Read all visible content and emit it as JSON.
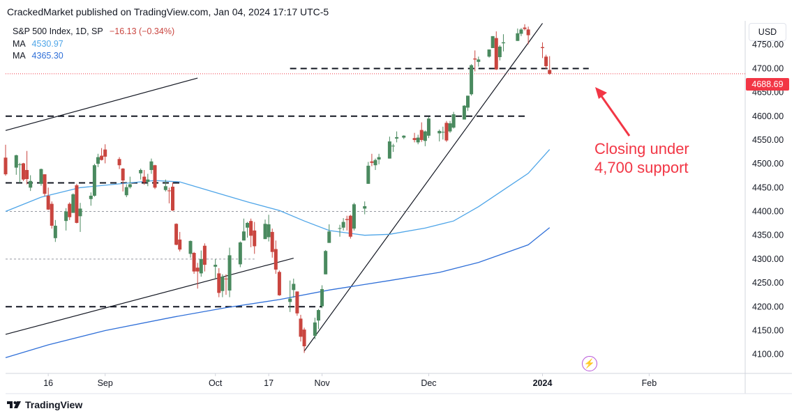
{
  "header": {
    "publisher_line": "CrackedMarket published on TradingView.com, Jan 04, 2024 17:17 UTC-5"
  },
  "legend": {
    "symbol": "S&P 500 Index, 1D, SP",
    "change": "−16.13 (−0.34%)",
    "ma1_label": "MA",
    "ma1_value": "4530.97",
    "ma2_label": "MA",
    "ma2_value": "4365.30"
  },
  "currency": "USD",
  "last_price": "4688.69",
  "annotation": {
    "line1": "Closing under",
    "line2": "4,700 support"
  },
  "footer": {
    "brand": "TradingView"
  },
  "colors": {
    "up": "#4a8a5f",
    "down": "#c9453f",
    "ma_fast": "#4ea5e8",
    "ma_slow": "#2f6fd8",
    "annotation": "#f23645"
  },
  "chart_data": {
    "type": "candlestick",
    "y_range": [
      4060,
      4800
    ],
    "y_ticks": [
      4100,
      4150,
      4200,
      4250,
      4300,
      4350,
      4400,
      4450,
      4500,
      4550,
      4600,
      4650,
      4700,
      4750
    ],
    "x_ticks": [
      "16",
      "Sep",
      "Oct",
      "17",
      "Nov",
      "Dec",
      "2024",
      "Feb"
    ],
    "x_tick_dates": [
      "2023-08-16",
      "2023-09-01",
      "2023-10-02",
      "2023-10-17",
      "2023-11-01",
      "2023-12-01",
      "2024-01-02",
      "2024-02-01"
    ],
    "x_range": [
      "2023-08-04",
      "2024-02-28"
    ],
    "candles": [
      {
        "d": "2023-08-04",
        "o": 4513,
        "h": 4540,
        "l": 4475,
        "c": 4478
      },
      {
        "d": "2023-08-07",
        "o": 4492,
        "h": 4519,
        "l": 4477,
        "c": 4518
      },
      {
        "d": "2023-08-08",
        "o": 4498,
        "h": 4502,
        "l": 4460,
        "c": 4499
      },
      {
        "d": "2023-08-09",
        "o": 4501,
        "h": 4502,
        "l": 4464,
        "c": 4467
      },
      {
        "d": "2023-08-10",
        "o": 4487,
        "h": 4527,
        "l": 4457,
        "c": 4468
      },
      {
        "d": "2023-08-11",
        "o": 4450,
        "h": 4476,
        "l": 4443,
        "c": 4464
      },
      {
        "d": "2023-08-14",
        "o": 4458,
        "h": 4490,
        "l": 4454,
        "c": 4489
      },
      {
        "d": "2023-08-15",
        "o": 4478,
        "h": 4478,
        "l": 4432,
        "c": 4437
      },
      {
        "d": "2023-08-16",
        "o": 4433,
        "h": 4450,
        "l": 4403,
        "c": 4404
      },
      {
        "d": "2023-08-17",
        "o": 4416,
        "h": 4421,
        "l": 4364,
        "c": 4370
      },
      {
        "d": "2023-08-18",
        "o": 4344,
        "h": 4382,
        "l": 4336,
        "c": 4370
      },
      {
        "d": "2023-08-21",
        "o": 4380,
        "h": 4407,
        "l": 4360,
        "c": 4400
      },
      {
        "d": "2023-08-22",
        "o": 4416,
        "h": 4419,
        "l": 4382,
        "c": 4388
      },
      {
        "d": "2023-08-23",
        "o": 4397,
        "h": 4438,
        "l": 4397,
        "c": 4436
      },
      {
        "d": "2023-08-24",
        "o": 4455,
        "h": 4458,
        "l": 4375,
        "c": 4376
      },
      {
        "d": "2023-08-25",
        "o": 4390,
        "h": 4418,
        "l": 4357,
        "c": 4406
      },
      {
        "d": "2023-08-28",
        "o": 4426,
        "h": 4440,
        "l": 4412,
        "c": 4433
      },
      {
        "d": "2023-08-29",
        "o": 4433,
        "h": 4500,
        "l": 4431,
        "c": 4497
      },
      {
        "d": "2023-08-30",
        "o": 4500,
        "h": 4521,
        "l": 4493,
        "c": 4514
      },
      {
        "d": "2023-08-31",
        "o": 4517,
        "h": 4533,
        "l": 4507,
        "c": 4508
      },
      {
        "d": "2023-09-01",
        "o": 4530,
        "h": 4541,
        "l": 4501,
        "c": 4515
      },
      {
        "d": "2023-09-05",
        "o": 4510,
        "h": 4514,
        "l": 4489,
        "c": 4497
      },
      {
        "d": "2023-09-06",
        "o": 4490,
        "h": 4491,
        "l": 4442,
        "c": 4465
      },
      {
        "d": "2023-09-07",
        "o": 4434,
        "h": 4457,
        "l": 4430,
        "c": 4451
      },
      {
        "d": "2023-09-08",
        "o": 4451,
        "h": 4473,
        "l": 4448,
        "c": 4457
      },
      {
        "d": "2023-09-11",
        "o": 4480,
        "h": 4490,
        "l": 4467,
        "c": 4487
      },
      {
        "d": "2023-09-12",
        "o": 4473,
        "h": 4487,
        "l": 4456,
        "c": 4461
      },
      {
        "d": "2023-09-13",
        "o": 4462,
        "h": 4479,
        "l": 4453,
        "c": 4467
      },
      {
        "d": "2023-09-14",
        "o": 4487,
        "h": 4511,
        "l": 4479,
        "c": 4505
      },
      {
        "d": "2023-09-15",
        "o": 4497,
        "h": 4498,
        "l": 4447,
        "c": 4450
      },
      {
        "d": "2023-09-18",
        "o": 4445,
        "h": 4467,
        "l": 4442,
        "c": 4453
      },
      {
        "d": "2023-09-19",
        "o": 4444,
        "h": 4450,
        "l": 4417,
        "c": 4443
      },
      {
        "d": "2023-09-20",
        "o": 4452,
        "h": 4461,
        "l": 4401,
        "c": 4402
      },
      {
        "d": "2023-09-21",
        "o": 4374,
        "h": 4375,
        "l": 4329,
        "c": 4330
      },
      {
        "d": "2023-09-22",
        "o": 4341,
        "h": 4357,
        "l": 4316,
        "c": 4320
      },
      {
        "d": "2023-09-25",
        "o": 4311,
        "h": 4339,
        "l": 4303,
        "c": 4338
      },
      {
        "d": "2023-09-26",
        "o": 4313,
        "h": 4315,
        "l": 4269,
        "c": 4274
      },
      {
        "d": "2023-09-27",
        "o": 4282,
        "h": 4292,
        "l": 4238,
        "c": 4274
      },
      {
        "d": "2023-09-28",
        "o": 4270,
        "h": 4318,
        "l": 4263,
        "c": 4300
      },
      {
        "d": "2023-09-29",
        "o": 4328,
        "h": 4333,
        "l": 4274,
        "c": 4288
      },
      {
        "d": "2023-10-02",
        "o": 4284,
        "h": 4300,
        "l": 4260,
        "c": 4288
      },
      {
        "d": "2023-10-03",
        "o": 4270,
        "h": 4281,
        "l": 4220,
        "c": 4229
      },
      {
        "d": "2023-10-04",
        "o": 4233,
        "h": 4268,
        "l": 4220,
        "c": 4263
      },
      {
        "d": "2023-10-05",
        "o": 4259,
        "h": 4268,
        "l": 4225,
        "c": 4258
      },
      {
        "d": "2023-10-06",
        "o": 4234,
        "h": 4324,
        "l": 4220,
        "c": 4308
      },
      {
        "d": "2023-10-09",
        "o": 4289,
        "h": 4337,
        "l": 4283,
        "c": 4335
      },
      {
        "d": "2023-10-10",
        "o": 4339,
        "h": 4385,
        "l": 4339,
        "c": 4358
      },
      {
        "d": "2023-10-11",
        "o": 4366,
        "h": 4378,
        "l": 4345,
        "c": 4376
      },
      {
        "d": "2023-10-12",
        "o": 4380,
        "h": 4385,
        "l": 4325,
        "c": 4349
      },
      {
        "d": "2023-10-13",
        "o": 4360,
        "h": 4378,
        "l": 4311,
        "c": 4327
      },
      {
        "d": "2023-10-16",
        "o": 4342,
        "h": 4383,
        "l": 4342,
        "c": 4374
      },
      {
        "d": "2023-10-17",
        "o": 4346,
        "h": 4393,
        "l": 4337,
        "c": 4373
      },
      {
        "d": "2023-10-18",
        "o": 4357,
        "h": 4364,
        "l": 4303,
        "c": 4315
      },
      {
        "d": "2023-10-19",
        "o": 4321,
        "h": 4339,
        "l": 4269,
        "c": 4278
      },
      {
        "d": "2023-10-20",
        "o": 4273,
        "h": 4276,
        "l": 4223,
        "c": 4224
      },
      {
        "d": "2023-10-23",
        "o": 4210,
        "h": 4255,
        "l": 4189,
        "c": 4217
      },
      {
        "d": "2023-10-24",
        "o": 4235,
        "h": 4259,
        "l": 4219,
        "c": 4248
      },
      {
        "d": "2023-10-25",
        "o": 4232,
        "h": 4232,
        "l": 4181,
        "c": 4186
      },
      {
        "d": "2023-10-26",
        "o": 4175,
        "h": 4183,
        "l": 4127,
        "c": 4137
      },
      {
        "d": "2023-10-27",
        "o": 4152,
        "h": 4156,
        "l": 4103,
        "c": 4117
      },
      {
        "d": "2023-10-30",
        "o": 4139,
        "h": 4177,
        "l": 4132,
        "c": 4167
      },
      {
        "d": "2023-10-31",
        "o": 4171,
        "h": 4195,
        "l": 4153,
        "c": 4193
      },
      {
        "d": "2023-11-01",
        "o": 4201,
        "h": 4245,
        "l": 4197,
        "c": 4237
      },
      {
        "d": "2023-11-02",
        "o": 4268,
        "h": 4319,
        "l": 4268,
        "c": 4317
      },
      {
        "d": "2023-11-03",
        "o": 4334,
        "h": 4373,
        "l": 4334,
        "c": 4358
      },
      {
        "d": "2023-11-06",
        "o": 4364,
        "h": 4372,
        "l": 4347,
        "c": 4365
      },
      {
        "d": "2023-11-07",
        "o": 4366,
        "h": 4386,
        "l": 4360,
        "c": 4378
      },
      {
        "d": "2023-11-08",
        "o": 4384,
        "h": 4391,
        "l": 4360,
        "c": 4382
      },
      {
        "d": "2023-11-09",
        "o": 4391,
        "h": 4393,
        "l": 4343,
        "c": 4347
      },
      {
        "d": "2023-11-10",
        "o": 4364,
        "h": 4418,
        "l": 4360,
        "c": 4415
      },
      {
        "d": "2023-11-13",
        "o": 4406,
        "h": 4421,
        "l": 4394,
        "c": 4411
      },
      {
        "d": "2023-11-14",
        "o": 4458,
        "h": 4504,
        "l": 4458,
        "c": 4496
      },
      {
        "d": "2023-11-15",
        "o": 4505,
        "h": 4521,
        "l": 4495,
        "c": 4502
      },
      {
        "d": "2023-11-16",
        "o": 4497,
        "h": 4511,
        "l": 4487,
        "c": 4508
      },
      {
        "d": "2023-11-17",
        "o": 4509,
        "h": 4521,
        "l": 4499,
        "c": 4514
      },
      {
        "d": "2023-11-20",
        "o": 4511,
        "h": 4557,
        "l": 4511,
        "c": 4547
      },
      {
        "d": "2023-11-21",
        "o": 4538,
        "h": 4542,
        "l": 4525,
        "c": 4538
      },
      {
        "d": "2023-11-22",
        "o": 4553,
        "h": 4568,
        "l": 4545,
        "c": 4556
      },
      {
        "d": "2023-11-24",
        "o": 4555,
        "h": 4560,
        "l": 4552,
        "c": 4559
      },
      {
        "d": "2023-11-27",
        "o": 4554,
        "h": 4565,
        "l": 4545,
        "c": 4550
      },
      {
        "d": "2023-11-28",
        "o": 4545,
        "h": 4561,
        "l": 4541,
        "c": 4555
      },
      {
        "d": "2023-11-29",
        "o": 4571,
        "h": 4587,
        "l": 4546,
        "c": 4550
      },
      {
        "d": "2023-11-30",
        "o": 4548,
        "h": 4570,
        "l": 4537,
        "c": 4568
      },
      {
        "d": "2023-12-01",
        "o": 4559,
        "h": 4599,
        "l": 4554,
        "c": 4595
      },
      {
        "d": "2023-12-04",
        "o": 4564,
        "h": 4572,
        "l": 4547,
        "c": 4569
      },
      {
        "d": "2023-12-05",
        "o": 4566,
        "h": 4578,
        "l": 4551,
        "c": 4567
      },
      {
        "d": "2023-12-06",
        "o": 4586,
        "h": 4590,
        "l": 4546,
        "c": 4549
      },
      {
        "d": "2023-12-07",
        "o": 4568,
        "h": 4590,
        "l": 4565,
        "c": 4585
      },
      {
        "d": "2023-12-08",
        "o": 4576,
        "h": 4609,
        "l": 4574,
        "c": 4604
      },
      {
        "d": "2023-12-11",
        "o": 4593,
        "h": 4623,
        "l": 4593,
        "c": 4622
      },
      {
        "d": "2023-12-12",
        "o": 4618,
        "h": 4643,
        "l": 4611,
        "c": 4643
      },
      {
        "d": "2023-12-13",
        "o": 4646,
        "h": 4709,
        "l": 4643,
        "c": 4707
      },
      {
        "d": "2023-12-14",
        "o": 4721,
        "h": 4738,
        "l": 4694,
        "c": 4719
      },
      {
        "d": "2023-12-15",
        "o": 4714,
        "h": 4725,
        "l": 4704,
        "c": 4719
      },
      {
        "d": "2023-12-18",
        "o": 4725,
        "h": 4740,
        "l": 4723,
        "c": 4740
      },
      {
        "d": "2023-12-19",
        "o": 4743,
        "h": 4768,
        "l": 4743,
        "c": 4768
      },
      {
        "d": "2023-12-20",
        "o": 4764,
        "h": 4778,
        "l": 4697,
        "c": 4698
      },
      {
        "d": "2023-12-21",
        "o": 4724,
        "h": 4749,
        "l": 4717,
        "c": 4746
      },
      {
        "d": "2023-12-22",
        "o": 4753,
        "h": 4772,
        "l": 4736,
        "c": 4755
      },
      {
        "d": "2023-12-26",
        "o": 4758,
        "h": 4784,
        "l": 4758,
        "c": 4774
      },
      {
        "d": "2023-12-27",
        "o": 4773,
        "h": 4785,
        "l": 4768,
        "c": 4782
      },
      {
        "d": "2023-12-28",
        "o": 4786,
        "h": 4793,
        "l": 4780,
        "c": 4783
      },
      {
        "d": "2023-12-29",
        "o": 4782,
        "h": 4788,
        "l": 4751,
        "c": 4770
      },
      {
        "d": "2024-01-02",
        "o": 4745,
        "h": 4755,
        "l": 4722,
        "c": 4743
      },
      {
        "d": "2024-01-03",
        "o": 4725,
        "h": 4729,
        "l": 4699,
        "c": 4705
      },
      {
        "d": "2024-01-04",
        "o": 4697,
        "h": 4726,
        "l": 4687,
        "c": 4689
      }
    ],
    "ma_fast": [
      [
        "2023-08-04",
        4400
      ],
      [
        "2023-08-14",
        4430
      ],
      [
        "2023-08-25",
        4450
      ],
      [
        "2023-09-05",
        4458
      ],
      [
        "2023-09-15",
        4465
      ],
      [
        "2023-09-22",
        4462
      ],
      [
        "2023-10-02",
        4440
      ],
      [
        "2023-10-11",
        4420
      ],
      [
        "2023-10-20",
        4402
      ],
      [
        "2023-10-27",
        4380
      ],
      [
        "2023-11-03",
        4360
      ],
      [
        "2023-11-13",
        4350
      ],
      [
        "2023-11-20",
        4352
      ],
      [
        "2023-11-30",
        4365
      ],
      [
        "2023-12-08",
        4380
      ],
      [
        "2023-12-15",
        4410
      ],
      [
        "2023-12-22",
        4445
      ],
      [
        "2023-12-29",
        4480
      ],
      [
        "2024-01-04",
        4530
      ]
    ],
    "ma_slow": [
      [
        "2023-08-04",
        4093
      ],
      [
        "2023-08-16",
        4120
      ],
      [
        "2023-09-01",
        4150
      ],
      [
        "2023-09-20",
        4178
      ],
      [
        "2023-10-05",
        4198
      ],
      [
        "2023-10-20",
        4215
      ],
      [
        "2023-11-03",
        4235
      ],
      [
        "2023-11-20",
        4255
      ],
      [
        "2023-12-04",
        4272
      ],
      [
        "2023-12-15",
        4293
      ],
      [
        "2023-12-29",
        4330
      ],
      [
        "2024-01-04",
        4366
      ]
    ],
    "support_levels": [
      {
        "value": 4700,
        "from": "2023-10-23",
        "to": "2024-01-15",
        "style": "dashed-bold"
      },
      {
        "value": 4600,
        "from": "2023-08-04",
        "to": "2023-12-29",
        "style": "dashed-bold"
      },
      {
        "value": 4460,
        "from": "2023-08-04",
        "to": "2023-09-22",
        "style": "dashed-bold"
      },
      {
        "value": 4200,
        "from": "2023-08-04",
        "to": "2023-11-01",
        "style": "dashed-bold"
      },
      {
        "value": 4400,
        "from": "2023-08-04",
        "to": "2023-12-11",
        "style": "dashed-thin"
      },
      {
        "value": 4300,
        "from": "2023-08-04",
        "to": "2023-10-13",
        "style": "dashed-thin"
      }
    ],
    "trend_lines": [
      {
        "from": [
          "2023-08-04",
          4570
        ],
        "to": [
          "2023-09-27",
          4680
        ]
      },
      {
        "from": [
          "2023-08-04",
          4142
        ],
        "to": [
          "2023-10-24",
          4302
        ]
      },
      {
        "from": [
          "2023-10-27",
          4107
        ],
        "to": [
          "2024-01-02",
          4795
        ]
      }
    ]
  }
}
